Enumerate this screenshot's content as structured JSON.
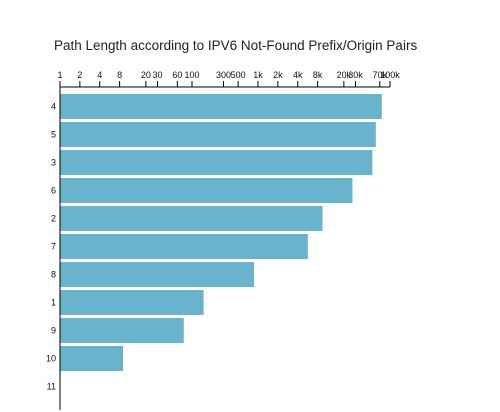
{
  "chart_data": {
    "type": "bar",
    "orientation": "horizontal",
    "title": "Path Length according to IPV6 Not-Found Prefix/Origin Pairs",
    "x_scale": "log",
    "x_axis_position": "top",
    "xlim": [
      1,
      100000
    ],
    "x_ticks": [
      1,
      2,
      4,
      8,
      20,
      30,
      60,
      100,
      300,
      500,
      1000,
      2000,
      4000,
      8000,
      20000,
      30000,
      70000,
      100000
    ],
    "x_tick_labels": [
      "1",
      "2",
      "4",
      "8",
      "20",
      "30",
      "60",
      "100",
      "300",
      "500",
      "1k",
      "2k",
      "4k",
      "8k",
      "20k",
      "30k",
      "70k",
      "100k"
    ],
    "categories": [
      "4",
      "5",
      "3",
      "6",
      "2",
      "7",
      "8",
      "1",
      "9",
      "10",
      "11"
    ],
    "values": [
      75000,
      61000,
      54000,
      27000,
      9500,
      5700,
      870,
      150,
      75,
      9,
      1
    ],
    "bar_color": "#69b3cc",
    "grid": false,
    "legend": "none"
  }
}
